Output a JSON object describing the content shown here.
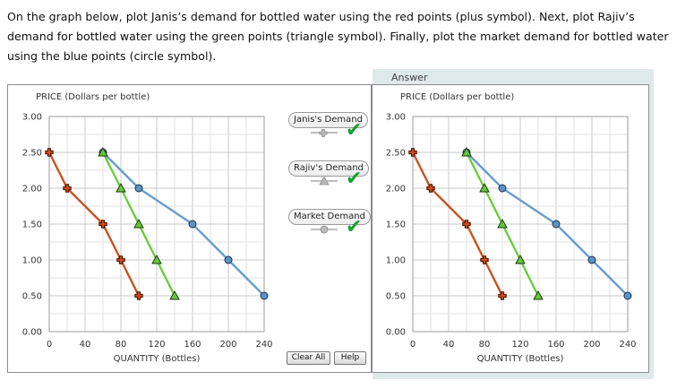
{
  "instructions": "On the graph below, plot Janis’s demand for bottled water using the red points (plus symbol). Next, plot Rajiv’s demand for bottled water using the green points (triangle symbol). Finally, plot the market demand for bottled water using the blue points (circle symbol).",
  "answer_label": "Answer",
  "legend": {
    "janis": "Janis's Demand",
    "rajiv": "Rajiv's Demand",
    "market": "Market Demand"
  },
  "buttons": {
    "clear_all": "Clear All",
    "help": "Help"
  },
  "colors": {
    "janis": "#d04a12",
    "rajiv": "#63c83a",
    "market": "#5b93c6",
    "check": "#1aa032"
  },
  "chart_data": [
    {
      "type": "line",
      "panel": "student",
      "xlabel": "QUANTITY (Bottles)",
      "ylabel": "PRICE (Dollars per bottle)",
      "xlim": [
        0,
        240
      ],
      "ylim": [
        0,
        3
      ],
      "x_ticks": [
        "0",
        "40",
        "80",
        "120",
        "160",
        "200",
        "240"
      ],
      "y_ticks": [
        "0.00",
        "0.50",
        "1.00",
        "1.50",
        "2.00",
        "2.50",
        "3.00"
      ],
      "grid": true,
      "series": [
        {
          "name": "Janis's Demand",
          "marker": "plus",
          "color": "#d04a12",
          "points": [
            [
              0,
              2.5
            ],
            [
              20,
              2.0
            ],
            [
              60,
              1.5
            ],
            [
              80,
              1.0
            ],
            [
              100,
              0.5
            ]
          ]
        },
        {
          "name": "Rajiv's Demand",
          "marker": "triangle",
          "color": "#63c83a",
          "points": [
            [
              60,
              2.5
            ],
            [
              80,
              2.0
            ],
            [
              100,
              1.5
            ],
            [
              120,
              1.0
            ],
            [
              140,
              0.5
            ]
          ]
        },
        {
          "name": "Market Demand",
          "marker": "circle",
          "color": "#5b93c6",
          "points": [
            [
              60,
              2.5
            ],
            [
              100,
              2.0
            ],
            [
              160,
              1.5
            ],
            [
              200,
              1.0
            ],
            [
              240,
              0.5
            ]
          ]
        }
      ]
    },
    {
      "type": "line",
      "panel": "answer",
      "xlabel": "QUANTITY (Bottles)",
      "ylabel": "PRICE (Dollars per bottle)",
      "xlim": [
        0,
        240
      ],
      "ylim": [
        0,
        3
      ],
      "x_ticks": [
        "0",
        "40",
        "80",
        "120",
        "160",
        "200",
        "240"
      ],
      "y_ticks": [
        "0.00",
        "0.50",
        "1.00",
        "1.50",
        "2.00",
        "2.50",
        "3.00"
      ],
      "grid": true,
      "series": [
        {
          "name": "Janis's Demand",
          "marker": "plus",
          "color": "#d04a12",
          "points": [
            [
              0,
              2.5
            ],
            [
              20,
              2.0
            ],
            [
              60,
              1.5
            ],
            [
              80,
              1.0
            ],
            [
              100,
              0.5
            ]
          ]
        },
        {
          "name": "Rajiv's Demand",
          "marker": "triangle",
          "color": "#63c83a",
          "points": [
            [
              60,
              2.5
            ],
            [
              80,
              2.0
            ],
            [
              100,
              1.5
            ],
            [
              120,
              1.0
            ],
            [
              140,
              0.5
            ]
          ]
        },
        {
          "name": "Market Demand",
          "marker": "circle",
          "color": "#5b93c6",
          "points": [
            [
              60,
              2.5
            ],
            [
              100,
              2.0
            ],
            [
              160,
              1.5
            ],
            [
              200,
              1.0
            ],
            [
              240,
              0.5
            ]
          ]
        }
      ]
    }
  ]
}
